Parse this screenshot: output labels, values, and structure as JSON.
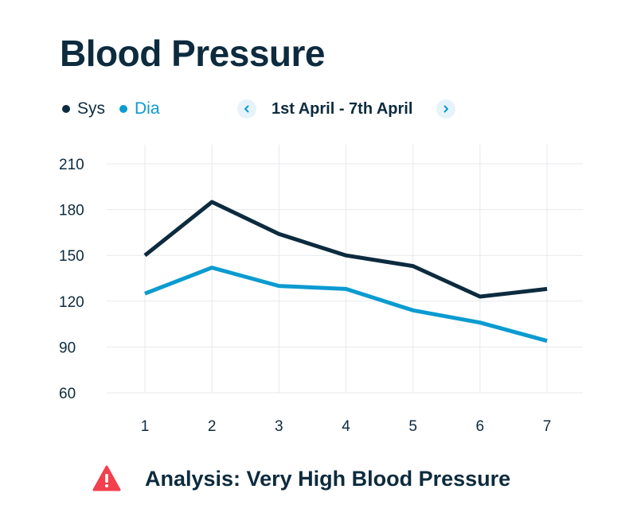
{
  "header": {
    "title": "Blood Pressure"
  },
  "legend": {
    "sys_label": "Sys",
    "dia_label": "Dia"
  },
  "navigation": {
    "date_range": "1st April - 7th April",
    "prev_icon": "chevron-left-icon",
    "next_icon": "chevron-right-icon"
  },
  "colors": {
    "sys": "#0d2b3e",
    "dia": "#0b9bd0",
    "grid": "#e6e9ec",
    "text": "#0d2b3e",
    "alert": "#f2404c",
    "nav_bg": "#e6f4fa"
  },
  "chart_data": {
    "type": "line",
    "title": "Blood Pressure",
    "xlabel": "",
    "ylabel": "",
    "x": [
      1,
      2,
      3,
      4,
      5,
      6,
      7
    ],
    "x_ticks": [
      "1",
      "2",
      "3",
      "4",
      "5",
      "6",
      "7"
    ],
    "y_ticks": [
      60,
      90,
      120,
      150,
      180,
      210
    ],
    "ylim": [
      60,
      210
    ],
    "grid": true,
    "legend_position": "top-left",
    "series": [
      {
        "name": "Sys",
        "values": [
          150,
          185,
          164,
          150,
          143,
          123,
          128
        ]
      },
      {
        "name": "Dia",
        "values": [
          125,
          142,
          130,
          128,
          114,
          106,
          94
        ]
      }
    ]
  },
  "analysis": {
    "icon": "warning-icon",
    "text": "Analysis: Very High Blood Pressure"
  }
}
